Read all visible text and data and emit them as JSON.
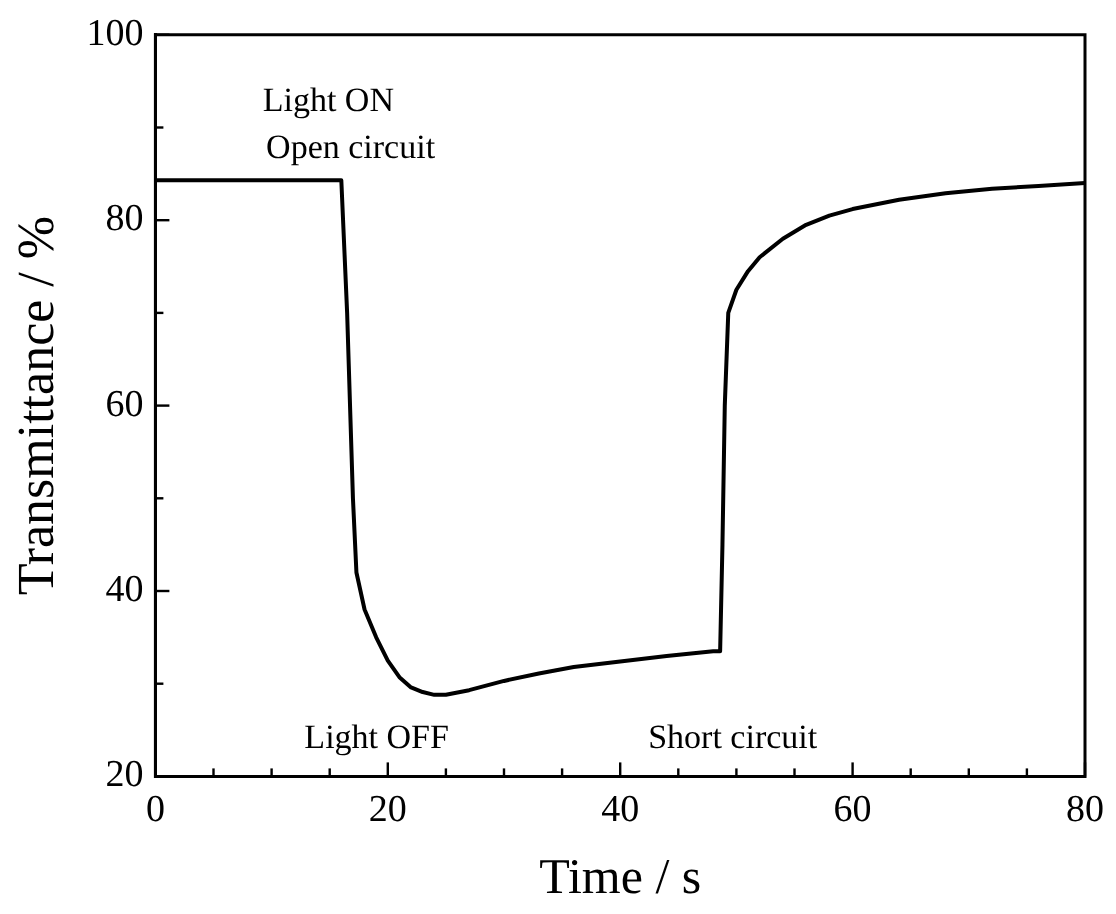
{
  "chart_data": {
    "type": "line",
    "xlabel": "Time / s",
    "ylabel": "Transmittance / %",
    "xlim": [
      0,
      80
    ],
    "ylim": [
      20,
      100
    ],
    "xticks": [
      0,
      {
        "value": 5,
        "label": null
      },
      {
        "value": 10,
        "label": null
      },
      {
        "value": 15,
        "label": null
      },
      20,
      {
        "value": 25,
        "label": null
      },
      {
        "value": 30,
        "label": null
      },
      {
        "value": 35,
        "label": null
      },
      40,
      {
        "value": 45,
        "label": null
      },
      {
        "value": 50,
        "label": null
      },
      {
        "value": 55,
        "label": null
      },
      60,
      {
        "value": 65,
        "label": null
      },
      {
        "value": 70,
        "label": null
      },
      {
        "value": 75,
        "label": null
      },
      80
    ],
    "yticks": [
      20,
      {
        "value": 30,
        "label": null
      },
      40,
      {
        "value": 50,
        "label": null
      },
      60,
      {
        "value": 70,
        "label": null
      },
      80,
      {
        "value": 90,
        "label": null
      },
      100
    ],
    "grid": false,
    "legend": false,
    "marker": "none",
    "line_style": "solid",
    "x": [
      0,
      16,
      16.5,
      17,
      17.3,
      18,
      19,
      20,
      21,
      22,
      23,
      24,
      25,
      27,
      30,
      33,
      36,
      40,
      44,
      48,
      48.6,
      48.8,
      49,
      49.3,
      50,
      51,
      52,
      54,
      56,
      58,
      60,
      64,
      68,
      72,
      76,
      80
    ],
    "series": [
      {
        "color": "#000000",
        "values": [
          84.3,
          84.3,
          70,
          50,
          42,
          38,
          35,
          32.5,
          30.7,
          29.6,
          29.1,
          28.8,
          28.8,
          29.3,
          30.3,
          31.1,
          31.8,
          32.4,
          33,
          33.5,
          33.5,
          45,
          60,
          70,
          72.5,
          74.5,
          76,
          78,
          79.5,
          80.5,
          81.2,
          82.2,
          82.9,
          83.4,
          83.7,
          84
        ]
      }
    ],
    "annotations": [
      "Light ON",
      "Open circuit",
      "Light OFF",
      "Short circuit"
    ]
  }
}
